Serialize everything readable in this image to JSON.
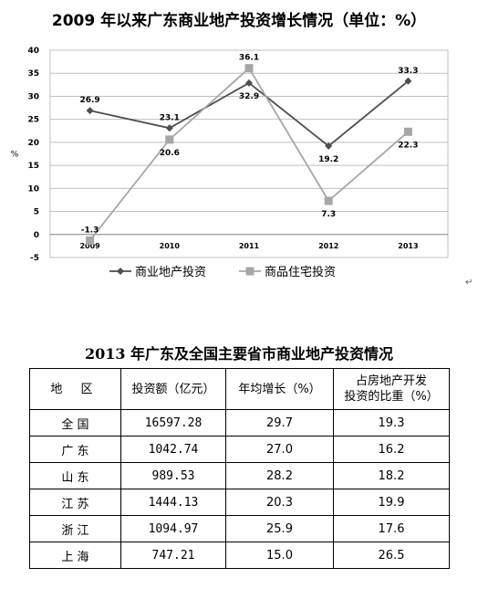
{
  "chart_title": "2009 年以来广东商业地产投资增长情况（单位：%）",
  "chart_data": {
    "type": "line",
    "title": "2009 年以来广东商业地产投资增长情况（单位：%）",
    "x": [
      "2009",
      "2010",
      "2011",
      "2012",
      "2013"
    ],
    "ylabel": "%",
    "ylim": [
      -5,
      40
    ],
    "yticks": [
      -5,
      0,
      5,
      10,
      15,
      20,
      25,
      30,
      35,
      40
    ],
    "grid": true,
    "legend": "bottom",
    "series": [
      {
        "name": "商业地产投资",
        "values": [
          26.9,
          23.1,
          32.9,
          19.2,
          33.3
        ],
        "labels": [
          "26.9",
          "23.1",
          "32.9",
          "19.2",
          "33.3"
        ],
        "color": "#4d4d4d",
        "marker": "diamond"
      },
      {
        "name": "商品住宅投资",
        "values": [
          -1.3,
          20.6,
          36.1,
          7.3,
          22.3
        ],
        "labels": [
          "-1.3",
          "20.6",
          "36.1",
          "7.3",
          "22.3"
        ],
        "color": "#a6a6a6",
        "marker": "square"
      }
    ]
  },
  "table": {
    "title": "2013 年广东及全国主要省市商业地产投资情况",
    "headers": [
      "地 区",
      "投资额（亿元）",
      "年均增长（%）",
      "占房地产开发投资的比重（%）"
    ],
    "header_last_lines": [
      "占房地产开发",
      "投资的比重（%）"
    ],
    "rows": [
      [
        "全 国",
        "16597.28",
        "29.7",
        "19.3"
      ],
      [
        "广 东",
        "1042.74",
        "27.0",
        "16.2"
      ],
      [
        "山 东",
        "989.53",
        "28.2",
        "18.2"
      ],
      [
        "江 苏",
        "1444.13",
        "20.3",
        "19.9"
      ],
      [
        "浙 江",
        "1094.97",
        "25.9",
        "17.6"
      ],
      [
        "上 海",
        "747.21",
        "15.0",
        "26.5"
      ]
    ]
  },
  "pilcrow": "↵"
}
